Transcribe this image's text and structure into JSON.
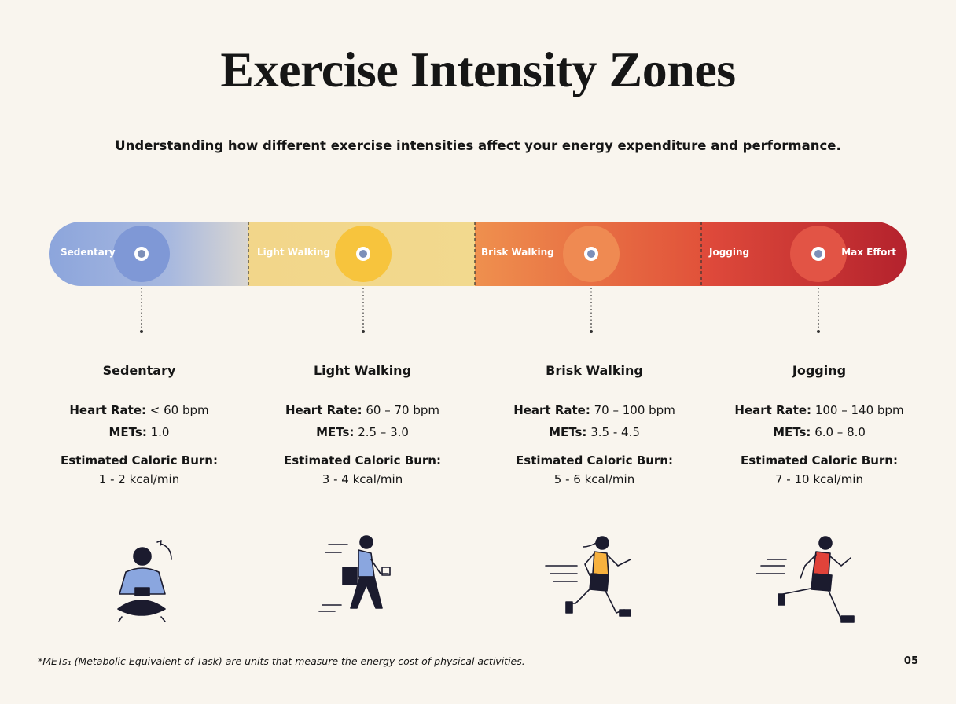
{
  "header": {
    "title": "Exercise Intensity Zones",
    "subtitle": "Understanding how different exercise intensities affect your energy expenditure and performance."
  },
  "scale": {
    "labels": [
      "Sedentary",
      "Light Walking",
      "Brisk Walking",
      "Jogging",
      "Max Effort"
    ]
  },
  "zones": [
    {
      "name": "Sedentary",
      "heart_rate_label": "Heart Rate:",
      "heart_rate": "< 60 bpm",
      "mets_label": "METs:",
      "mets": "1.0",
      "burn_label": "Estimated Caloric Burn:",
      "burn": "1 - 2 kcal/min"
    },
    {
      "name": "Light Walking",
      "heart_rate_label": "Heart Rate:",
      "heart_rate": "60 – 70 bpm",
      "mets_label": "METs:",
      "mets": "2.5 – 3.0",
      "burn_label": "Estimated Caloric Burn:",
      "burn": "3 - 4 kcal/min"
    },
    {
      "name": "Brisk Walking",
      "heart_rate_label": "Heart Rate:",
      "heart_rate": "70 – 100 bpm",
      "mets_label": "METs:",
      "mets": "3.5 - 4.5",
      "burn_label": "Estimated Caloric Burn:",
      "burn": "5 - 6 kcal/min"
    },
    {
      "name": "Jogging",
      "heart_rate_label": "Heart Rate:",
      "heart_rate": "100 – 140 bpm",
      "mets_label": "METs:",
      "mets": "6.0 – 8.0",
      "burn_label": "Estimated Caloric Burn:",
      "burn": "7 - 10 kcal/min"
    }
  ],
  "footer": {
    "note": "*METs₁ (Metabolic Equivalent of Task) are units that measure the energy cost of physical activities.",
    "page": "05"
  }
}
